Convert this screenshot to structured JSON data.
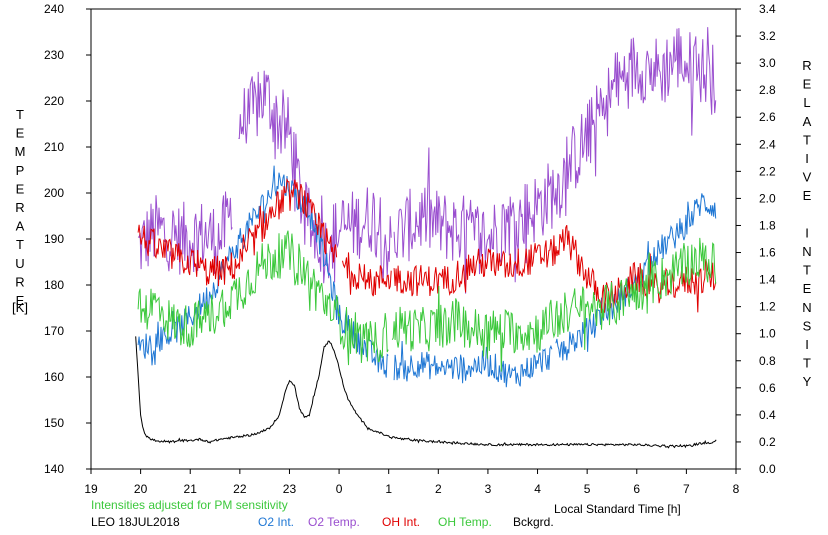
{
  "chart_data": {
    "type": "line",
    "left_axis": {
      "label": "TEMPERATURE",
      "unit": "[K]",
      "range": [
        140,
        240
      ],
      "ticks": [
        140,
        150,
        160,
        170,
        180,
        190,
        200,
        210,
        220,
        230,
        240
      ]
    },
    "right_axis": {
      "label": "RELATIVE INTENSITY",
      "range": [
        0.0,
        3.4
      ],
      "ticks": [
        "0.0",
        "0.2",
        "0.4",
        "0.6",
        "0.8",
        "1.0",
        "1.2",
        "1.4",
        "1.6",
        "1.8",
        "2.0",
        "2.2",
        "2.4",
        "2.6",
        "2.8",
        "3.0",
        "3.2",
        "3.4"
      ]
    },
    "x_axis": {
      "label": "Local Standard Time [h]",
      "range": [
        19,
        32
      ],
      "ticks": [
        19,
        20,
        21,
        22,
        23,
        24,
        25,
        26,
        27,
        28,
        29,
        30,
        31,
        32
      ],
      "tick_labels": [
        "19",
        "20",
        "21",
        "22",
        "23",
        "0",
        "1",
        "2",
        "3",
        "4",
        "5",
        "6",
        "7",
        "8"
      ]
    },
    "note": "Intensities adjusted for PM sensitivity",
    "station": "LEO 18JUL2018",
    "legend": [
      {
        "label": "O2 Int.",
        "color": "#1f77d4"
      },
      {
        "label": "O2 Temp.",
        "color": "#9a4fcf"
      },
      {
        "label": "OH Int.",
        "color": "#e00000"
      },
      {
        "label": "OH Temp.",
        "color": "#3cc83c"
      },
      {
        "label": "Bckgrd.",
        "color": "#000000"
      }
    ],
    "series": [
      {
        "name": "O2 Temp.",
        "axis": "left",
        "color": "#9a4fcf",
        "noise": 8,
        "gaps": [
          [
            21.85,
            21.95
          ],
          [
            25.05,
            25.1
          ]
        ],
        "x": [
          19.95,
          20.3,
          20.8,
          21.2,
          21.6,
          21.8,
          22.0,
          22.3,
          22.5,
          22.8,
          23.0,
          23.3,
          23.7,
          24.0,
          24.3,
          24.7,
          25.0,
          25.3,
          25.7,
          26.0,
          26.5,
          27.0,
          27.3,
          27.7,
          28.0,
          28.3,
          28.5,
          28.7,
          29.0,
          29.5,
          29.8,
          30.0,
          30.5,
          30.8,
          31.0,
          31.3,
          31.6
        ],
        "y": [
          188,
          192,
          190,
          191,
          190,
          195,
          215,
          218,
          222,
          215,
          213,
          195,
          188,
          192,
          193,
          195,
          188,
          192,
          195,
          193,
          192,
          190,
          193,
          195,
          197,
          200,
          203,
          207,
          212,
          222,
          226,
          228,
          226,
          230,
          228,
          227,
          224
        ]
      },
      {
        "name": "O2 Int.",
        "axis": "left",
        "color": "#1f77d4",
        "noise": 3,
        "gaps": [
          [
            25.0,
            25.1
          ],
          [
            28.3,
            28.35
          ]
        ],
        "x": [
          19.95,
          20.3,
          20.7,
          21.0,
          21.4,
          21.8,
          22.2,
          22.5,
          22.8,
          23.1,
          23.5,
          23.8,
          24.0,
          24.4,
          24.8,
          25.2,
          25.6,
          26.0,
          26.5,
          27.0,
          27.5,
          28.0,
          28.5,
          29.0,
          29.5,
          30.0,
          30.5,
          31.0,
          31.3,
          31.6
        ],
        "y": [
          166,
          168,
          170,
          173,
          178,
          186,
          193,
          198,
          203,
          200,
          194,
          182,
          173,
          168,
          163,
          162,
          163,
          162,
          162,
          163,
          160,
          163,
          166,
          170,
          175,
          181,
          188,
          193,
          198,
          197
        ]
      },
      {
        "name": "OH Int.",
        "axis": "left",
        "color": "#e00000",
        "noise": 3.5,
        "gaps": [
          [
            23.95,
            24.05
          ],
          [
            25.05,
            25.1
          ]
        ],
        "x": [
          19.95,
          20.3,
          20.7,
          21.0,
          21.3,
          21.7,
          22.0,
          22.3,
          22.6,
          22.9,
          23.2,
          23.5,
          23.8,
          24.0,
          24.3,
          24.6,
          25.0,
          25.4,
          25.8,
          26.2,
          26.6,
          27.0,
          27.3,
          27.7,
          28.0,
          28.3,
          28.6,
          29.0,
          29.3,
          29.6,
          30.0,
          30.3,
          30.6,
          31.0,
          31.3,
          31.6
        ],
        "y": [
          191,
          188,
          186,
          185,
          183,
          183,
          185,
          190,
          195,
          199,
          200,
          194,
          188,
          185,
          183,
          180,
          182,
          181,
          181,
          181,
          184,
          185,
          184,
          185,
          186,
          187,
          190,
          182,
          177,
          178,
          182,
          179,
          180,
          181,
          181,
          182
        ]
      },
      {
        "name": "OH Temp.",
        "axis": "left",
        "color": "#3cc83c",
        "noise": 5,
        "gaps": [
          [
            25.0,
            25.05
          ]
        ],
        "x": [
          19.95,
          20.3,
          20.6,
          20.9,
          21.2,
          21.5,
          21.8,
          22.1,
          22.4,
          22.7,
          23.0,
          23.3,
          23.6,
          23.9,
          24.1,
          24.4,
          24.7,
          25.0,
          25.3,
          25.6,
          26.0,
          26.4,
          26.8,
          27.2,
          27.6,
          28.0,
          28.4,
          28.8,
          29.2,
          29.6,
          30.0,
          30.4,
          30.8,
          31.2,
          31.6
        ],
        "y": [
          174,
          176,
          172,
          171,
          172,
          174,
          177,
          180,
          184,
          186,
          187,
          183,
          178,
          174,
          171,
          168,
          167,
          170,
          171,
          170,
          171,
          172,
          170,
          170,
          170,
          170,
          173,
          175,
          175,
          176,
          179,
          181,
          183,
          186,
          184
        ]
      },
      {
        "name": "Bckgrd.",
        "axis": "right",
        "color": "#000000",
        "noise": 0.008,
        "gaps": [],
        "x": [
          19.9,
          19.95,
          20.0,
          20.05,
          20.1,
          20.2,
          20.4,
          20.6,
          20.8,
          21.0,
          21.2,
          21.4,
          21.6,
          21.8,
          22.0,
          22.2,
          22.4,
          22.6,
          22.8,
          22.9,
          23.0,
          23.1,
          23.2,
          23.3,
          23.4,
          23.5,
          23.6,
          23.7,
          23.8,
          23.9,
          24.0,
          24.1,
          24.2,
          24.4,
          24.6,
          24.8,
          25.0,
          25.3,
          25.6,
          26.0,
          26.5,
          27.0,
          27.5,
          28.0,
          28.5,
          29.0,
          29.5,
          30.0,
          30.5,
          31.0,
          31.3,
          31.6
        ],
        "y": [
          0.98,
          0.7,
          0.4,
          0.3,
          0.25,
          0.22,
          0.2,
          0.2,
          0.21,
          0.21,
          0.22,
          0.2,
          0.22,
          0.23,
          0.24,
          0.25,
          0.27,
          0.3,
          0.4,
          0.55,
          0.66,
          0.62,
          0.45,
          0.38,
          0.4,
          0.55,
          0.7,
          0.9,
          0.95,
          0.88,
          0.75,
          0.6,
          0.5,
          0.38,
          0.3,
          0.27,
          0.24,
          0.22,
          0.21,
          0.2,
          0.19,
          0.18,
          0.18,
          0.18,
          0.18,
          0.18,
          0.18,
          0.18,
          0.17,
          0.17,
          0.19,
          0.2
        ]
      }
    ]
  }
}
